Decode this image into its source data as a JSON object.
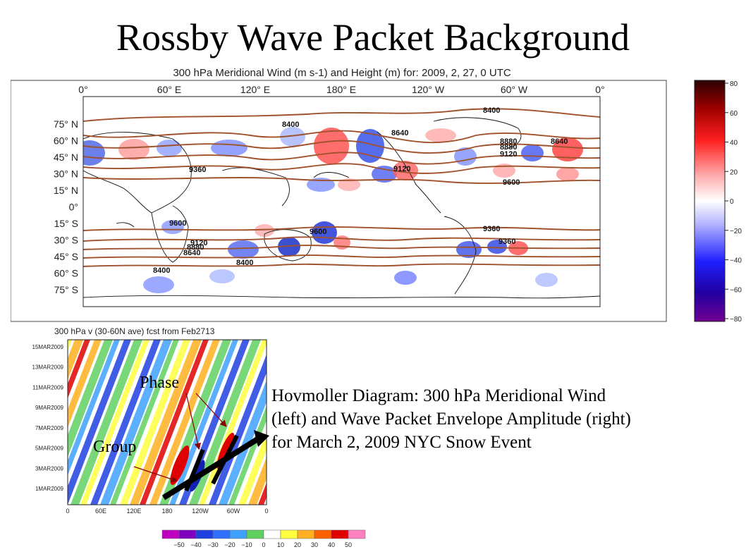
{
  "slide": {
    "title": "Rossby Wave Packet Background"
  },
  "map": {
    "title": "300 hPa Meridional Wind (m s-1) and Height (m) for: 2009, 2, 27, 0 UTC",
    "lon_labels": [
      "0°",
      "60° E",
      "120° E",
      "180° E",
      "120° W",
      "60° W",
      "0°"
    ],
    "lat_labels": [
      "75° N",
      "60° N",
      "45° N",
      "30° N",
      "15° N",
      "0°",
      "15° S",
      "30° S",
      "45° S",
      "60° S",
      "75° S"
    ],
    "contour_labels": [
      "8400",
      "8640",
      "8400",
      "8640",
      "8880",
      "8880",
      "9120",
      "9360",
      "9120",
      "9600",
      "9600",
      "9360",
      "9600",
      "9120",
      "8880",
      "8640",
      "9360",
      "8400",
      "8400"
    ]
  },
  "colorbar": {
    "ticks": [
      "80",
      "60",
      "40",
      "20",
      "0",
      "−20",
      "−40",
      "−60",
      "−80"
    ],
    "colors": [
      "#3a0000",
      "#b00000",
      "#ff3030",
      "#ffb0b0",
      "#ffffff",
      "#b0b0ff",
      "#3030ff",
      "#2000a0",
      "#600080"
    ]
  },
  "hovmoller": {
    "title": "300 hPa v (30-60N ave) fcst from Feb2713",
    "y_labels": [
      "15MAR2009",
      "13MAR2009",
      "11MAR2009",
      "9MAR2009",
      "7MAR2009",
      "5MAR2009",
      "3MAR2009",
      "1MAR2009"
    ],
    "x_labels": [
      "0",
      "60E",
      "120E",
      "180",
      "120W",
      "60W",
      "0"
    ],
    "annotations": {
      "phase": "Phase",
      "group": "Group"
    },
    "bar_ticks": [
      "−50",
      "−40",
      "−30",
      "−20",
      "−10",
      "0",
      "10",
      "20",
      "30",
      "40",
      "50"
    ],
    "bar_colors": [
      "#c000c0",
      "#8000c0",
      "#2040e0",
      "#3070ff",
      "#40a0ff",
      "#60d060",
      "#ffffff",
      "#ffff40",
      "#ffb020",
      "#ff6000",
      "#e00000",
      "#ff80c0"
    ]
  },
  "caption": {
    "line1": "Hovmoller Diagram: 300 hPa Meridional Wind",
    "line2": "(left) and Wave Packet Envelope Amplitude (right)",
    "line3": "for March 2, 2009 NYC Snow Event"
  }
}
